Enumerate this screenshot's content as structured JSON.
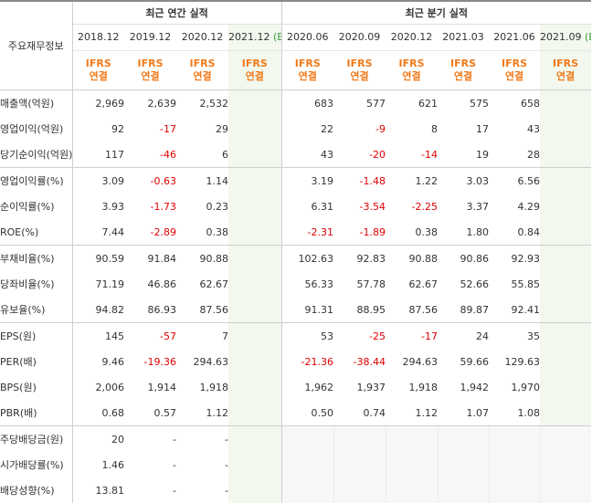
{
  "header": {
    "row_label": "주요재무정보",
    "annual_group": "최근 연간 실적",
    "quarter_group": "최근 분기 실적",
    "standard_line1": "IFRS",
    "standard_line2": "연결",
    "estimate_mark": "(E)"
  },
  "annual_periods": [
    "2018.12",
    "2019.12",
    "2020.12",
    "2021.12"
  ],
  "quarter_periods": [
    "2020.06",
    "2020.09",
    "2020.12",
    "2021.03",
    "2021.06",
    "2021.09"
  ],
  "rows": [
    {
      "label": "매출액(억원)",
      "annual": [
        "2,969",
        "2,639",
        "2,532",
        ""
      ],
      "quarter": [
        "683",
        "577",
        "621",
        "575",
        "658",
        ""
      ]
    },
    {
      "label": "영업이익(억원)",
      "annual": [
        "92",
        "-17",
        "29",
        ""
      ],
      "quarter": [
        "22",
        "-9",
        "8",
        "17",
        "43",
        ""
      ]
    },
    {
      "label": "당기순이익(억원)",
      "annual": [
        "117",
        "-46",
        "6",
        ""
      ],
      "quarter": [
        "43",
        "-20",
        "-14",
        "19",
        "28",
        ""
      ]
    },
    {
      "label": "영업이익률(%)",
      "annual": [
        "3.09",
        "-0.63",
        "1.14",
        ""
      ],
      "quarter": [
        "3.19",
        "-1.48",
        "1.22",
        "3.03",
        "6.56",
        ""
      ]
    },
    {
      "label": "순이익률(%)",
      "annual": [
        "3.93",
        "-1.73",
        "0.23",
        ""
      ],
      "quarter": [
        "6.31",
        "-3.54",
        "-2.25",
        "3.37",
        "4.29",
        ""
      ]
    },
    {
      "label": "ROE(%)",
      "annual": [
        "7.44",
        "-2.89",
        "0.38",
        ""
      ],
      "quarter": [
        "-2.31",
        "-1.89",
        "0.38",
        "1.80",
        "0.84",
        ""
      ]
    },
    {
      "label": "부채비율(%)",
      "annual": [
        "90.59",
        "91.84",
        "90.88",
        ""
      ],
      "quarter": [
        "102.63",
        "92.83",
        "90.88",
        "90.86",
        "92.93",
        ""
      ]
    },
    {
      "label": "당좌비율(%)",
      "annual": [
        "71.19",
        "46.86",
        "62.67",
        ""
      ],
      "quarter": [
        "56.33",
        "57.78",
        "62.67",
        "52.66",
        "55.85",
        ""
      ]
    },
    {
      "label": "유보율(%)",
      "annual": [
        "94.82",
        "86.93",
        "87.56",
        ""
      ],
      "quarter": [
        "91.31",
        "88.95",
        "87.56",
        "89.87",
        "92.41",
        ""
      ]
    },
    {
      "label": "EPS(원)",
      "annual": [
        "145",
        "-57",
        "7",
        ""
      ],
      "quarter": [
        "53",
        "-25",
        "-17",
        "24",
        "35",
        ""
      ]
    },
    {
      "label": "PER(배)",
      "annual": [
        "9.46",
        "-19.36",
        "294.63",
        ""
      ],
      "quarter": [
        "-21.36",
        "-38.44",
        "294.63",
        "59.66",
        "129.63",
        ""
      ]
    },
    {
      "label": "BPS(원)",
      "annual": [
        "2,006",
        "1,914",
        "1,918",
        ""
      ],
      "quarter": [
        "1,962",
        "1,937",
        "1,918",
        "1,942",
        "1,970",
        ""
      ]
    },
    {
      "label": "PBR(배)",
      "annual": [
        "0.68",
        "0.57",
        "1.12",
        ""
      ],
      "quarter": [
        "0.50",
        "0.74",
        "1.12",
        "1.07",
        "1.08",
        ""
      ]
    },
    {
      "label": "주당배당금(원)",
      "annual": [
        "20",
        "-",
        "-",
        ""
      ],
      "quarter": [
        "",
        "",
        "",
        "",
        "",
        ""
      ]
    },
    {
      "label": "시가배당률(%)",
      "annual": [
        "1.46",
        "-",
        "-",
        ""
      ],
      "quarter": [
        "",
        "",
        "",
        "",
        "",
        ""
      ]
    },
    {
      "label": "배당성향(%)",
      "annual": [
        "13.81",
        "-",
        "-",
        ""
      ],
      "quarter": [
        "",
        "",
        "",
        "",
        "",
        ""
      ]
    }
  ],
  "colors": {
    "negative": "#e00000",
    "standard": "#f07a1b",
    "estimate_bg": "#f2f8ee",
    "estimate_mark": "#3a9a3a"
  }
}
